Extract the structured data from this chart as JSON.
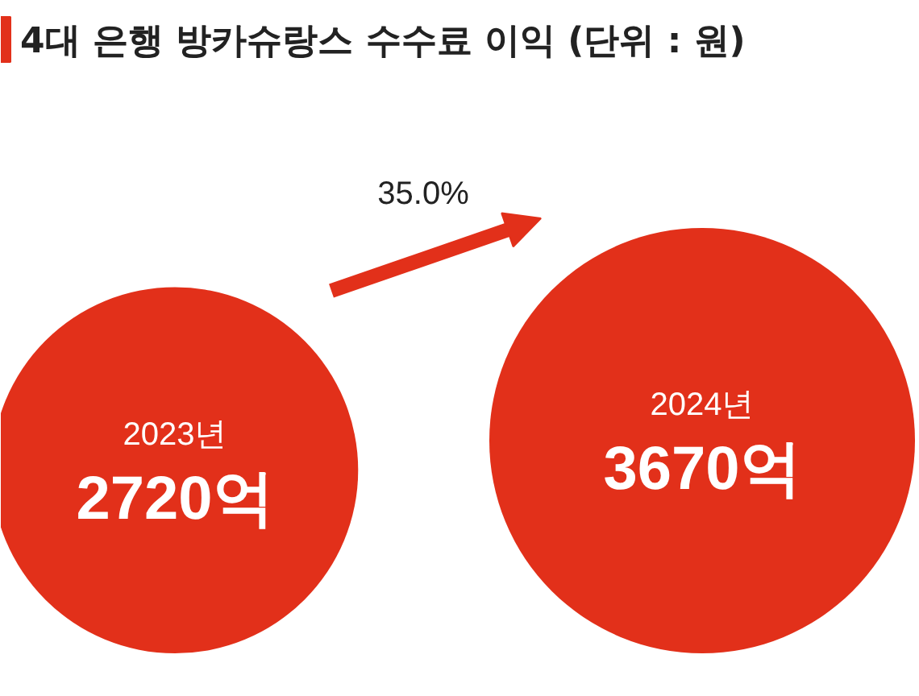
{
  "chart_data": {
    "type": "other",
    "title": "4대 은행 방카슈랑스 수수료 이익 (단위 : 원)",
    "categories": [
      "2023년",
      "2024년"
    ],
    "values": [
      2720,
      3670
    ],
    "value_labels": [
      "2720억",
      "3670억"
    ],
    "colors": [
      "#e2301a",
      "#e2301a"
    ],
    "annotations": [
      "35.0%"
    ]
  }
}
